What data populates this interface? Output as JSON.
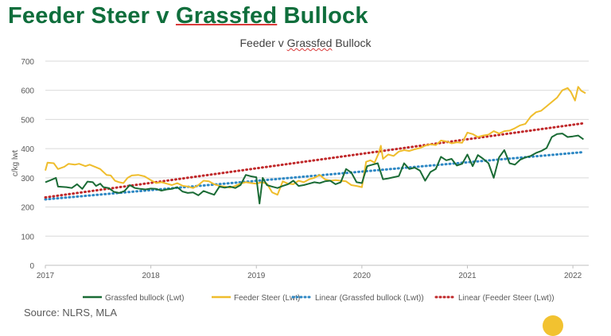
{
  "headline": {
    "part1": "Feeder Steer v ",
    "part2": "Grassfed",
    "part3": " Bullock"
  },
  "source": "Source: NLRS, MLA",
  "chart_data": {
    "type": "line",
    "title_parts": [
      "Feeder v ",
      "Grassfed",
      " Bullock"
    ],
    "ylabel": "c/kg lwt",
    "xlabel": "",
    "ylim": [
      0,
      700
    ],
    "xlim": [
      2017,
      2022.15
    ],
    "yticks": [
      0,
      100,
      200,
      300,
      400,
      500,
      600,
      700
    ],
    "xticks": [
      2017,
      2018,
      2019,
      2020,
      2021,
      2022
    ],
    "grid": true,
    "legend_position": "bottom",
    "colors": {
      "grassfed": "#1a6b35",
      "feeder": "#efbd2c",
      "grassfed_trend": "#2e88c4",
      "feeder_trend": "#c0282a",
      "axis": "#bfbfbf",
      "grid": "#d9d9d9",
      "tick_text": "#595959"
    },
    "series": [
      {
        "name": "Grassfed bullock (Lwt)",
        "key": "grassfed",
        "style": "solid",
        "points": [
          [
            2017.0,
            285
          ],
          [
            2017.05,
            292
          ],
          [
            2017.1,
            300
          ],
          [
            2017.12,
            270
          ],
          [
            2017.2,
            268
          ],
          [
            2017.25,
            265
          ],
          [
            2017.3,
            278
          ],
          [
            2017.35,
            262
          ],
          [
            2017.4,
            287
          ],
          [
            2017.45,
            285
          ],
          [
            2017.48,
            272
          ],
          [
            2017.52,
            280
          ],
          [
            2017.55,
            268
          ],
          [
            2017.6,
            265
          ],
          [
            2017.65,
            252
          ],
          [
            2017.7,
            248
          ],
          [
            2017.75,
            255
          ],
          [
            2017.8,
            275
          ],
          [
            2017.85,
            265
          ],
          [
            2017.9,
            262
          ],
          [
            2017.95,
            260
          ],
          [
            2018.0,
            263
          ],
          [
            2018.05,
            262
          ],
          [
            2018.1,
            256
          ],
          [
            2018.15,
            260
          ],
          [
            2018.2,
            262
          ],
          [
            2018.25,
            268
          ],
          [
            2018.3,
            253
          ],
          [
            2018.35,
            248
          ],
          [
            2018.4,
            250
          ],
          [
            2018.45,
            240
          ],
          [
            2018.5,
            255
          ],
          [
            2018.55,
            248
          ],
          [
            2018.6,
            242
          ],
          [
            2018.65,
            270
          ],
          [
            2018.7,
            266
          ],
          [
            2018.75,
            270
          ],
          [
            2018.8,
            265
          ],
          [
            2018.85,
            275
          ],
          [
            2018.9,
            310
          ],
          [
            2018.95,
            305
          ],
          [
            2019.0,
            302
          ],
          [
            2019.03,
            212
          ],
          [
            2019.06,
            300
          ],
          [
            2019.1,
            275
          ],
          [
            2019.15,
            270
          ],
          [
            2019.2,
            265
          ],
          [
            2019.25,
            272
          ],
          [
            2019.3,
            278
          ],
          [
            2019.35,
            290
          ],
          [
            2019.4,
            272
          ],
          [
            2019.45,
            275
          ],
          [
            2019.5,
            280
          ],
          [
            2019.55,
            285
          ],
          [
            2019.6,
            282
          ],
          [
            2019.65,
            288
          ],
          [
            2019.7,
            290
          ],
          [
            2019.75,
            278
          ],
          [
            2019.8,
            285
          ],
          [
            2019.85,
            330
          ],
          [
            2019.9,
            318
          ],
          [
            2019.95,
            285
          ],
          [
            2020.0,
            282
          ],
          [
            2020.05,
            340
          ],
          [
            2020.1,
            345
          ],
          [
            2020.15,
            350
          ],
          [
            2020.2,
            295
          ],
          [
            2020.25,
            298
          ],
          [
            2020.3,
            302
          ],
          [
            2020.35,
            306
          ],
          [
            2020.4,
            350
          ],
          [
            2020.45,
            330
          ],
          [
            2020.5,
            335
          ],
          [
            2020.55,
            325
          ],
          [
            2020.6,
            290
          ],
          [
            2020.65,
            320
          ],
          [
            2020.7,
            330
          ],
          [
            2020.75,
            372
          ],
          [
            2020.8,
            360
          ],
          [
            2020.85,
            365
          ],
          [
            2020.9,
            342
          ],
          [
            2020.95,
            348
          ],
          [
            2021.0,
            380
          ],
          [
            2021.05,
            340
          ],
          [
            2021.1,
            378
          ],
          [
            2021.15,
            365
          ],
          [
            2021.2,
            350
          ],
          [
            2021.25,
            300
          ],
          [
            2021.3,
            370
          ],
          [
            2021.35,
            395
          ],
          [
            2021.4,
            350
          ],
          [
            2021.45,
            345
          ],
          [
            2021.5,
            362
          ],
          [
            2021.55,
            370
          ],
          [
            2021.6,
            375
          ],
          [
            2021.65,
            385
          ],
          [
            2021.7,
            392
          ],
          [
            2021.75,
            402
          ],
          [
            2021.8,
            440
          ],
          [
            2021.85,
            450
          ],
          [
            2021.9,
            452
          ],
          [
            2021.95,
            440
          ],
          [
            2022.0,
            442
          ],
          [
            2022.05,
            445
          ],
          [
            2022.1,
            432
          ]
        ]
      },
      {
        "name": "Feeder Steer (Lwt)",
        "key": "feeder",
        "style": "solid",
        "points": [
          [
            2017.0,
            325
          ],
          [
            2017.02,
            352
          ],
          [
            2017.08,
            350
          ],
          [
            2017.12,
            330
          ],
          [
            2017.18,
            338
          ],
          [
            2017.22,
            348
          ],
          [
            2017.28,
            345
          ],
          [
            2017.32,
            348
          ],
          [
            2017.38,
            340
          ],
          [
            2017.42,
            345
          ],
          [
            2017.48,
            336
          ],
          [
            2017.52,
            330
          ],
          [
            2017.58,
            310
          ],
          [
            2017.62,
            308
          ],
          [
            2017.66,
            290
          ],
          [
            2017.7,
            285
          ],
          [
            2017.74,
            282
          ],
          [
            2017.78,
            300
          ],
          [
            2017.82,
            308
          ],
          [
            2017.88,
            310
          ],
          [
            2017.94,
            305
          ],
          [
            2018.0,
            292
          ],
          [
            2018.05,
            282
          ],
          [
            2018.1,
            285
          ],
          [
            2018.15,
            280
          ],
          [
            2018.2,
            275
          ],
          [
            2018.25,
            282
          ],
          [
            2018.3,
            273
          ],
          [
            2018.35,
            270
          ],
          [
            2018.4,
            265
          ],
          [
            2018.45,
            275
          ],
          [
            2018.5,
            290
          ],
          [
            2018.55,
            288
          ],
          [
            2018.6,
            278
          ],
          [
            2018.65,
            272
          ],
          [
            2018.7,
            270
          ],
          [
            2018.75,
            266
          ],
          [
            2018.8,
            272
          ],
          [
            2018.85,
            280
          ],
          [
            2018.9,
            285
          ],
          [
            2018.95,
            282
          ],
          [
            2019.0,
            280
          ],
          [
            2019.05,
            285
          ],
          [
            2019.1,
            280
          ],
          [
            2019.15,
            250
          ],
          [
            2019.2,
            242
          ],
          [
            2019.25,
            288
          ],
          [
            2019.3,
            280
          ],
          [
            2019.35,
            278
          ],
          [
            2019.4,
            290
          ],
          [
            2019.45,
            285
          ],
          [
            2019.5,
            295
          ],
          [
            2019.55,
            300
          ],
          [
            2019.6,
            310
          ],
          [
            2019.65,
            295
          ],
          [
            2019.7,
            290
          ],
          [
            2019.75,
            292
          ],
          [
            2019.8,
            290
          ],
          [
            2019.85,
            288
          ],
          [
            2019.9,
            275
          ],
          [
            2019.95,
            272
          ],
          [
            2020.0,
            268
          ],
          [
            2020.04,
            355
          ],
          [
            2020.08,
            360
          ],
          [
            2020.12,
            352
          ],
          [
            2020.16,
            385
          ],
          [
            2020.18,
            410
          ],
          [
            2020.2,
            365
          ],
          [
            2020.25,
            380
          ],
          [
            2020.3,
            375
          ],
          [
            2020.35,
            390
          ],
          [
            2020.4,
            395
          ],
          [
            2020.45,
            392
          ],
          [
            2020.5,
            398
          ],
          [
            2020.55,
            402
          ],
          [
            2020.6,
            410
          ],
          [
            2020.65,
            415
          ],
          [
            2020.7,
            412
          ],
          [
            2020.75,
            428
          ],
          [
            2020.8,
            425
          ],
          [
            2020.85,
            418
          ],
          [
            2020.9,
            422
          ],
          [
            2020.95,
            420
          ],
          [
            2021.0,
            455
          ],
          [
            2021.05,
            450
          ],
          [
            2021.1,
            440
          ],
          [
            2021.15,
            445
          ],
          [
            2021.2,
            448
          ],
          [
            2021.25,
            460
          ],
          [
            2021.3,
            452
          ],
          [
            2021.35,
            460
          ],
          [
            2021.4,
            462
          ],
          [
            2021.45,
            470
          ],
          [
            2021.5,
            480
          ],
          [
            2021.55,
            485
          ],
          [
            2021.6,
            510
          ],
          [
            2021.65,
            525
          ],
          [
            2021.7,
            530
          ],
          [
            2021.75,
            545
          ],
          [
            2021.8,
            560
          ],
          [
            2021.85,
            575
          ],
          [
            2021.9,
            600
          ],
          [
            2021.95,
            608
          ],
          [
            2021.98,
            595
          ],
          [
            2022.02,
            565
          ],
          [
            2022.05,
            612
          ],
          [
            2022.08,
            598
          ],
          [
            2022.12,
            590
          ]
        ]
      },
      {
        "name": "Linear (Grassfed bullock (Lwt))",
        "key": "grassfed_trend",
        "style": "dotted",
        "points": [
          [
            2017.0,
            226
          ],
          [
            2022.1,
            388
          ]
        ]
      },
      {
        "name": "Linear (Feeder Steer (Lwt))",
        "key": "feeder_trend",
        "style": "dotted",
        "points": [
          [
            2017.0,
            233
          ],
          [
            2022.1,
            487
          ]
        ]
      }
    ]
  }
}
